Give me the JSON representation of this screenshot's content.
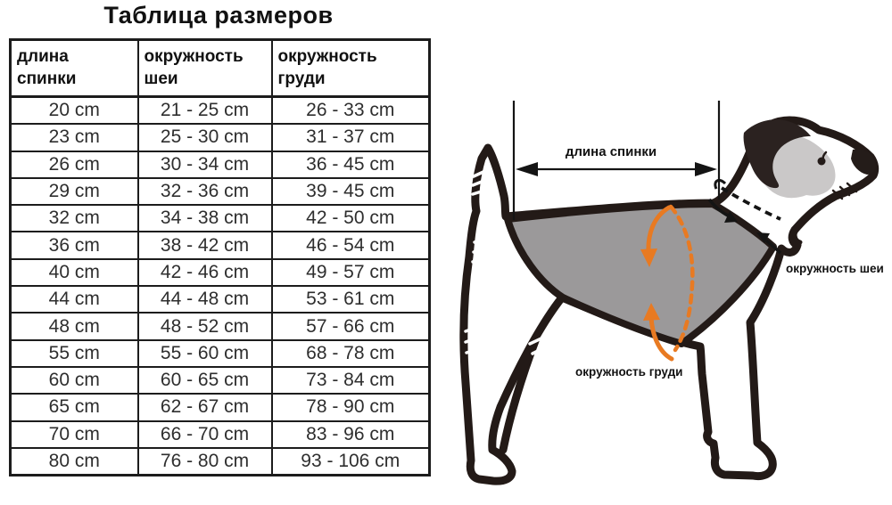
{
  "title": "Таблица размеров",
  "chart_data": {
    "type": "table",
    "title": "Таблица размеров",
    "columns": [
      "длина спинки",
      "окружность шеи",
      "окружность груди"
    ],
    "rows": [
      [
        "20 cm",
        "21 - 25 cm",
        "26 - 33 cm"
      ],
      [
        "23 cm",
        "25 - 30 cm",
        "31 - 37 cm"
      ],
      [
        "26 cm",
        "30 - 34 cm",
        "36 - 45 cm"
      ],
      [
        "29 cm",
        "32 - 36 cm",
        "39 - 45 cm"
      ],
      [
        "32 cm",
        "34 - 38 cm",
        "42 - 50 cm"
      ],
      [
        "36 cm",
        "38 - 42 cm",
        "46 - 54 cm"
      ],
      [
        "40 cm",
        "42 - 46 cm",
        "49 - 57 cm"
      ],
      [
        "44 cm",
        "44 - 48 cm",
        "53 - 61 cm"
      ],
      [
        "48 cm",
        "48 - 52 cm",
        "57 - 66 cm"
      ],
      [
        "55 cm",
        "55 - 60 cm",
        "68 - 78 cm"
      ],
      [
        "60 cm",
        "60 - 65 cm",
        "73 - 84 cm"
      ],
      [
        "65 cm",
        "62 - 67 cm",
        "78 - 90 cm"
      ],
      [
        "70 cm",
        "66 - 70 cm",
        "83 - 96 cm"
      ],
      [
        "80 cm",
        "76 - 80 cm",
        "93 - 106 cm"
      ]
    ]
  },
  "diagram": {
    "labels": {
      "back_length": "длина спинки",
      "neck_girth": "окружность шеи",
      "chest_girth": "окружность груди"
    },
    "colors": {
      "outline": "#231a17",
      "coat_gray": "#9b999a",
      "cheek_gray": "#cac8c8",
      "accent_orange": "#e87a22"
    }
  }
}
